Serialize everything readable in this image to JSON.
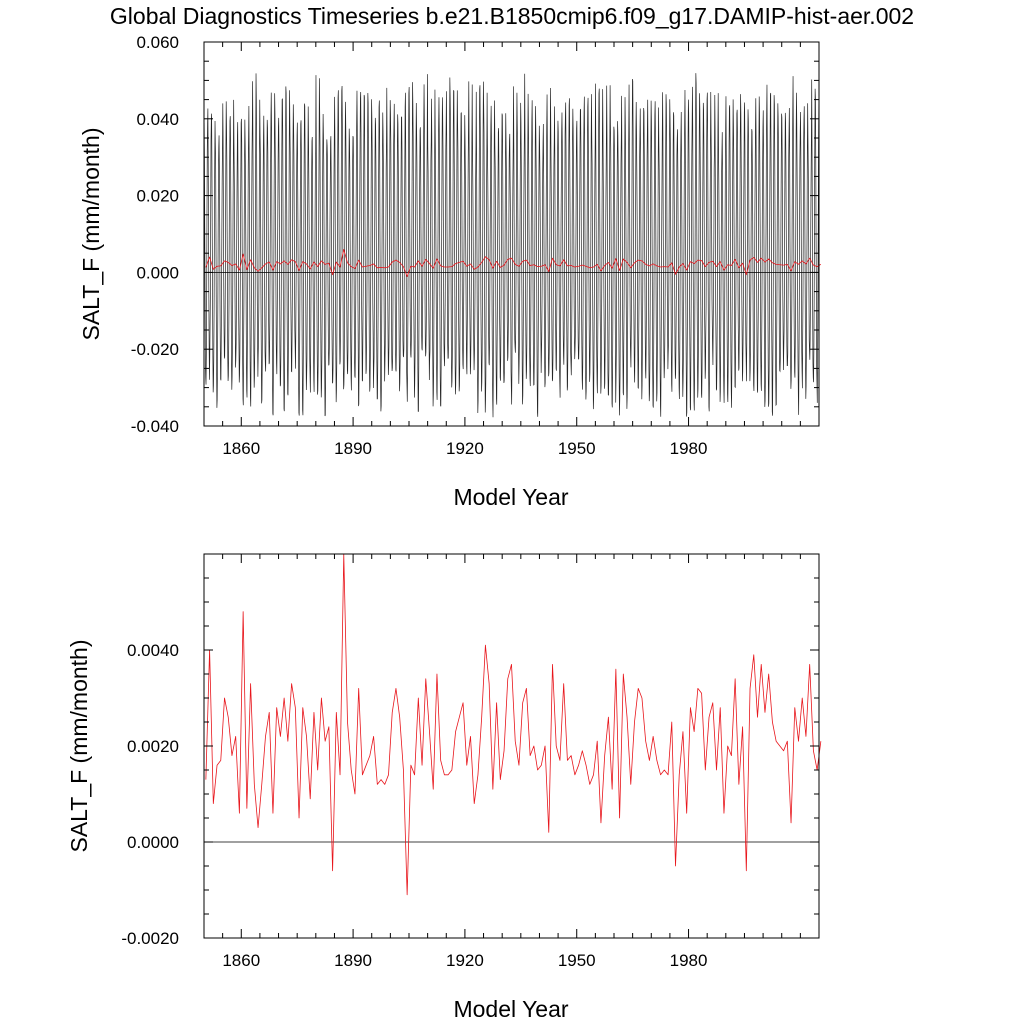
{
  "figure": {
    "title": "Global Diagnostics Timeseries b.e21.B1850cmip6.f09_g17.DAMIP-hist-aer.002"
  },
  "colors": {
    "monthly": "#000000",
    "annual": "#e8161c",
    "zero_line": "#000000",
    "axes": "#000000"
  },
  "chart_data": [
    {
      "type": "line",
      "xlabel": "Model Year",
      "ylabel": "SALT_F (mm/month)",
      "xlim": [
        1850,
        2015
      ],
      "ylim": [
        -0.04,
        0.06
      ],
      "xticks": [
        1860,
        1890,
        1920,
        1950,
        1980
      ],
      "yticks": [
        -0.04,
        -0.02,
        0.0,
        0.02,
        0.04,
        0.06
      ],
      "ytick_labels": [
        "-0.040",
        "-0.020",
        "0.000",
        "0.020",
        "0.040",
        "0.060"
      ],
      "grid": false,
      "legend": "none",
      "reference_line": 0,
      "series": [
        {
          "color": "#000000",
          "style": "monthly",
          "start_year": 1850,
          "months_per_year": 12,
          "envelope_approx": {
            "annual_max_range": [
              0.035,
              0.051
            ],
            "annual_min_range": [
              -0.037,
              -0.023
            ]
          }
        },
        {
          "color": "#e8161c",
          "style": "annual",
          "x_start": 1850,
          "values": [
            0.0013,
            0.004,
            0.0008,
            0.0016,
            0.0017,
            0.003,
            0.0026,
            0.0018,
            0.0022,
            0.0006,
            0.0048,
            0.0007,
            0.0033,
            0.0012,
            0.0003,
            0.0012,
            0.0022,
            0.0027,
            0.0006,
            0.0028,
            0.0022,
            0.003,
            0.0021,
            0.0033,
            0.0028,
            0.0005,
            0.0028,
            0.0022,
            0.0009,
            0.0027,
            0.0015,
            0.003,
            0.0021,
            0.0024,
            -0.0006,
            0.0027,
            0.0014,
            0.006,
            0.0025,
            0.0015,
            0.001,
            0.0032,
            0.0014,
            0.0016,
            0.0018,
            0.0022,
            0.0012,
            0.0013,
            0.0012,
            0.0014,
            0.0027,
            0.0032,
            0.0026,
            0.0015,
            -0.0011,
            0.0016,
            0.0014,
            0.003,
            0.0016,
            0.0034,
            0.0023,
            0.0011,
            0.0035,
            0.0017,
            0.0014,
            0.0014,
            0.0015,
            0.0023,
            0.0026,
            0.0029,
            0.0016,
            0.0022,
            0.0008,
            0.0014,
            0.0026,
            0.0041,
            0.0033,
            0.0011,
            0.0029,
            0.0013,
            0.0019,
            0.0034,
            0.0037,
            0.0021,
            0.0016,
            0.0029,
            0.0032,
            0.0018,
            0.002,
            0.0015,
            0.0016,
            0.002,
            0.0002,
            0.0037,
            0.002,
            0.0017,
            0.0033,
            0.0017,
            0.0018,
            0.0014,
            0.0016,
            0.0019,
            0.0016,
            0.0012,
            0.0014,
            0.0021,
            0.0004,
            0.0018,
            0.0026,
            0.0011,
            0.0036,
            0.0005,
            0.0035,
            0.0026,
            0.0012,
            0.0025,
            0.0032,
            0.003,
            0.0021,
            0.0017,
            0.0022,
            0.0017,
            0.0014,
            0.0015,
            0.0014,
            0.0025,
            -0.0005,
            0.0014,
            0.0023,
            0.0006,
            0.0028,
            0.0023,
            0.0032,
            0.0031,
            0.0015,
            0.0026,
            0.0029,
            0.0015,
            0.0028,
            0.0006,
            0.002,
            0.0018,
            0.0034,
            0.0012,
            0.0024,
            -0.0006,
            0.0032,
            0.0039,
            0.0026,
            0.0037,
            0.0027,
            0.0035,
            0.0025,
            0.0021,
            0.002,
            0.0019,
            0.0021,
            0.0004,
            0.0028,
            0.0021,
            0.003,
            0.0022,
            0.0037,
            0.0019,
            0.0015,
            0.0021
          ]
        }
      ]
    },
    {
      "type": "line",
      "xlabel": "Model Year",
      "ylabel": "SALT_F (mm/month)",
      "xlim": [
        1850,
        2015
      ],
      "ylim": [
        -0.002,
        0.006
      ],
      "xticks": [
        1860,
        1890,
        1920,
        1950,
        1980
      ],
      "yticks": [
        -0.002,
        0.0,
        0.002,
        0.004
      ],
      "ytick_labels": [
        "-0.0020",
        "0.0000",
        "0.0020",
        "0.0040"
      ],
      "grid": false,
      "legend": "none",
      "reference_line": 0,
      "series": [
        {
          "color": "#e8161c",
          "style": "annual",
          "x_start": 1850,
          "values_ref": 1
        }
      ]
    }
  ]
}
